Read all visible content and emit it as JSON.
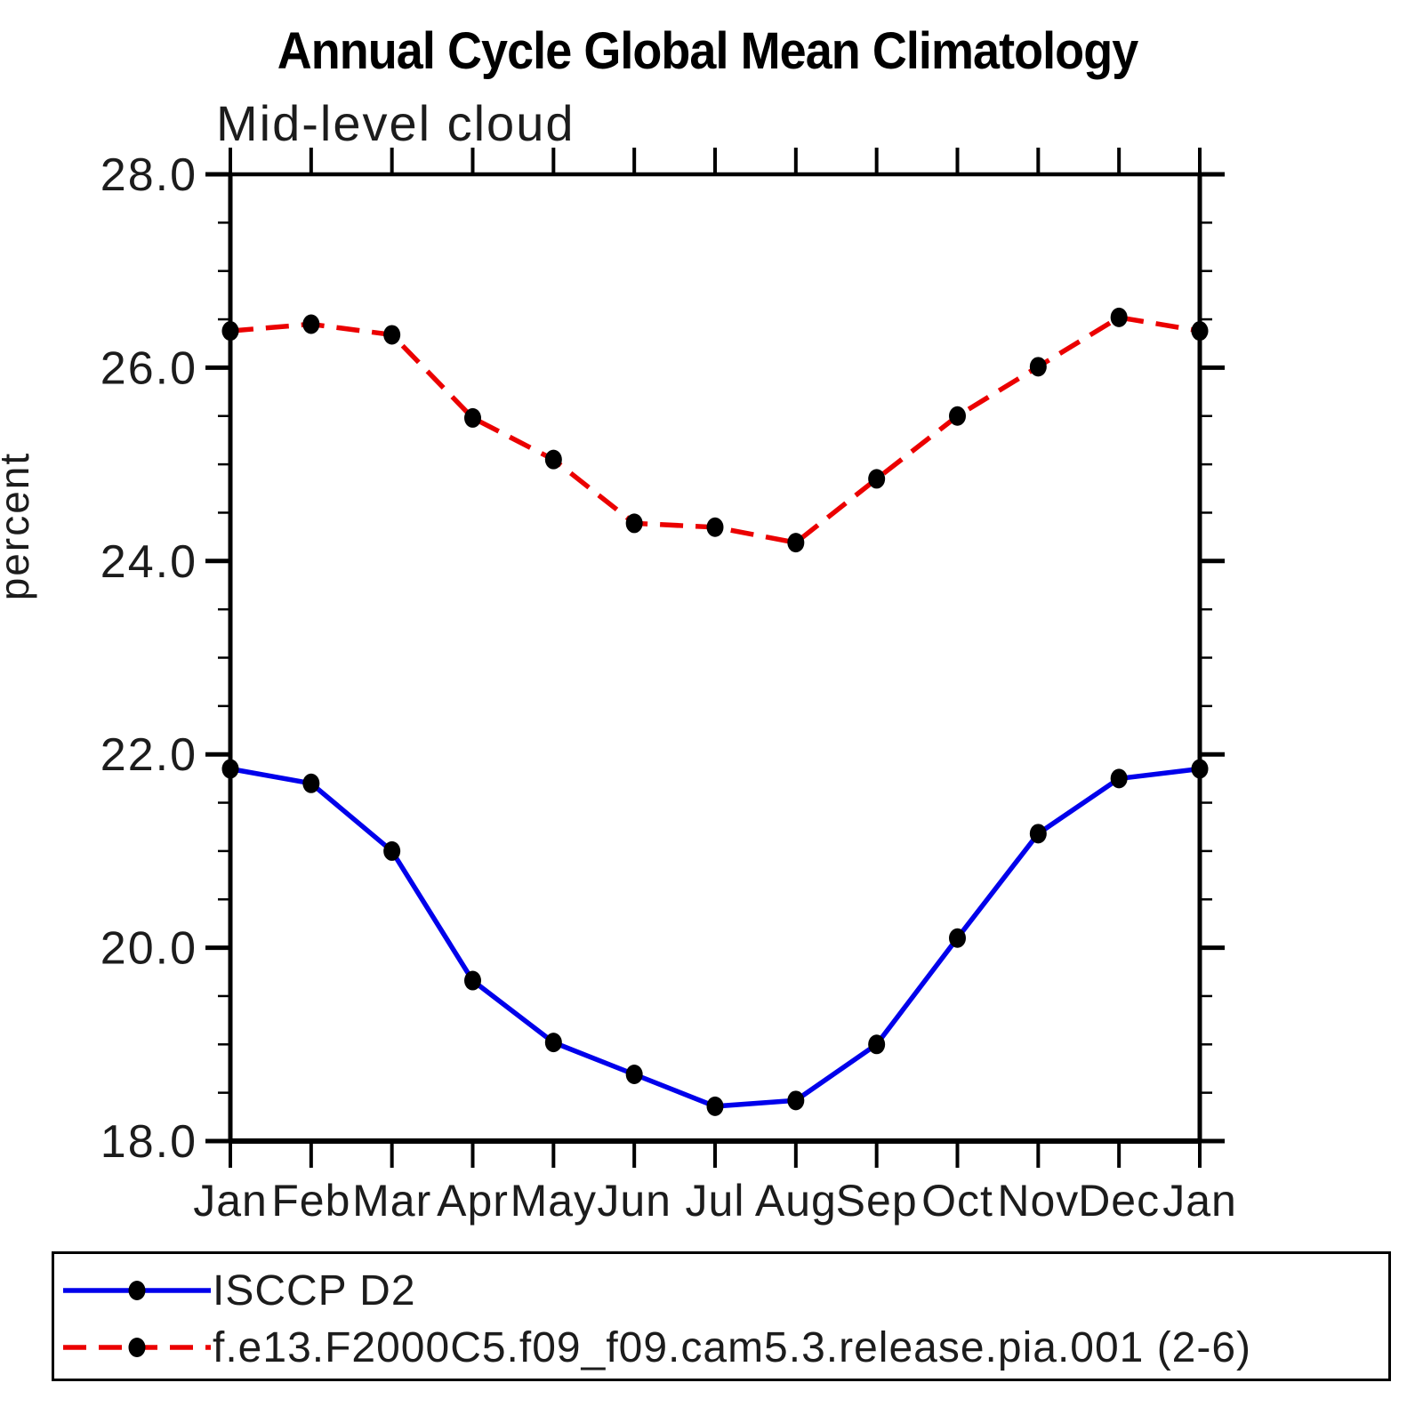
{
  "page": {
    "background": "#ffffff"
  },
  "chart_data": {
    "type": "line",
    "title": "Annual Cycle Global Mean Climatology",
    "subtitle": "Mid-level cloud",
    "ylabel": "percent",
    "xlabel": "",
    "categories": [
      "Jan",
      "Feb",
      "Mar",
      "Apr",
      "May",
      "Jun",
      "Jul",
      "Aug",
      "Sep",
      "Oct",
      "Nov",
      "Dec",
      "Jan"
    ],
    "ylim": [
      18.0,
      28.0
    ],
    "ytick_major_step": 2.0,
    "ytick_minor_step": 0.5,
    "ytick_labels": [
      "18.0",
      "20.0",
      "22.0",
      "24.0",
      "26.0",
      "28.0"
    ],
    "grid": false,
    "legend_position": "bottom-left-box",
    "axis_color": "#000000",
    "marker_color": "#000000",
    "series": [
      {
        "name": "ISCCP D2",
        "color": "#0000EB",
        "line_style": "solid",
        "marker": "dot",
        "values": [
          21.85,
          21.7,
          21.0,
          19.66,
          19.02,
          18.69,
          18.36,
          18.42,
          19.0,
          20.1,
          21.18,
          21.75,
          21.85
        ]
      },
      {
        "name": "f.e13.F2000C5.f09_f09.cam5.3.release.pia.001 (2-6)",
        "color": "#EB0000",
        "line_style": "dashed",
        "marker": "dot",
        "values": [
          26.38,
          26.45,
          26.34,
          25.48,
          25.05,
          24.39,
          24.35,
          24.19,
          24.85,
          25.5,
          26.01,
          26.52,
          26.38
        ]
      }
    ]
  }
}
